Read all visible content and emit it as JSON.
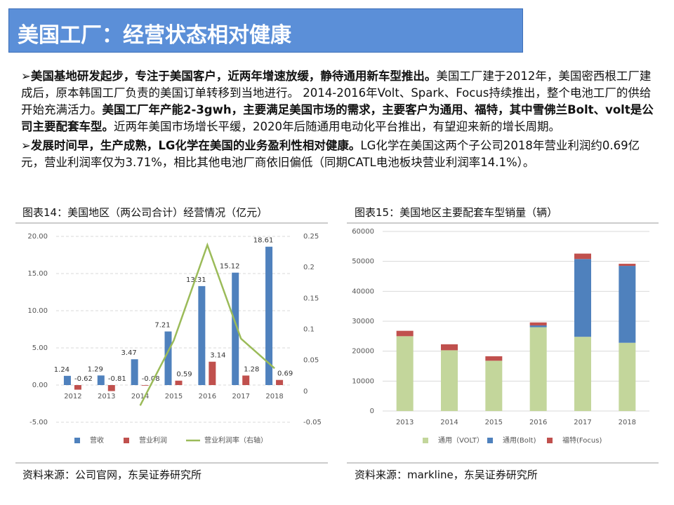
{
  "header": {
    "title": "美国工厂：经营状态相对健康"
  },
  "paragraphs": [
    {
      "segments": [
        {
          "text": "➢美国基地研发起步，专注于美国客户，近两年增速放缓，静待通用新车型推出。",
          "bold": true
        },
        {
          "text": "美国工厂建于2012年，美国密西根工厂建成后，原本韩国工厂负责的美国订单转移到当地进行。 2014-2016年Volt、Spark、Focus持续推出，整个电池工厂的供给开始充满活力。",
          "bold": false
        },
        {
          "text": "美国工厂年产能2-3gwh，主要满足美国市场的需求，主要客户为通用、福特，其中雪佛兰Bolt、volt是公司主要配套车型。",
          "bold": true
        },
        {
          "text": "近两年美国市场增长平缓，2020年后随通用电动化平台推出，有望迎来新的增长周期。",
          "bold": false
        }
      ]
    },
    {
      "segments": [
        {
          "text": "➢发展时间早，生产成熟，LG化学在美国的业务盈利性相对健康。",
          "bold": true
        },
        {
          "text": "LG化学在美国这两个子公司2018年营业利润约0.69亿元，营业利润率仅为3.71%，相比其他电池厂商依旧偏低（同期CATL电池板块营业利润率14.1%）。",
          "bold": false
        }
      ]
    }
  ],
  "charts": [
    {
      "type": "bar",
      "caption": "图表14：美国地区（两公司合计）经营情况（亿元）",
      "source": "资料来源：公司官网，东吴证券研究所",
      "categories": [
        "2012",
        "2013",
        "2014",
        "2015",
        "2016",
        "2017",
        "2018"
      ],
      "series": [
        {
          "name": "营收",
          "color": "#4f81bd",
          "values": [
            1.24,
            1.29,
            3.47,
            7.21,
            13.31,
            15.12,
            18.61
          ]
        },
        {
          "name": "营业利润",
          "color": "#c0504d",
          "values": [
            -0.62,
            -0.81,
            -0.08,
            0.59,
            3.14,
            1.28,
            0.69
          ]
        },
        {
          "name": "营业利润率（右轴）",
          "color": "#9bbb59",
          "type": "line",
          "axis": "y2",
          "values": [
            null,
            null,
            -0.023,
            0.082,
            0.236,
            0.085,
            0.037
          ]
        }
      ],
      "ylim": [
        -5,
        20
      ],
      "yticks": [
        {
          "value": -5,
          "label": "-5.00"
        },
        {
          "value": 0,
          "label": "0.00"
        },
        {
          "value": 5,
          "label": "5.00"
        },
        {
          "value": 10,
          "label": "10.00"
        },
        {
          "value": 15,
          "label": "15.00"
        },
        {
          "value": 20,
          "label": "20.00"
        }
      ],
      "y2lim": [
        -0.05,
        0.25
      ],
      "y2ticks": [
        -0.05,
        0,
        0.05,
        0.1,
        0.15,
        0.2,
        0.25
      ],
      "grid": true,
      "data_labels": true,
      "legend": "bottom"
    },
    {
      "type": "stacked-bar",
      "caption": "图表15：美国地区主要配套车型销量（辆）",
      "source": "资料来源：markline，东吴证券研究所",
      "categories": [
        "2013",
        "2014",
        "2015",
        "2016",
        "2017",
        "2018"
      ],
      "series": [
        {
          "name": "通用（VOLT）",
          "color": "#c3d69b",
          "values": [
            25000,
            20300,
            16800,
            28000,
            24800,
            22800
          ]
        },
        {
          "name": "通用(Bolt)",
          "color": "#4f81bd",
          "values": [
            0,
            0,
            0,
            600,
            26000,
            25700
          ]
        },
        {
          "name": "福特(Focus)",
          "color": "#c0504d",
          "values": [
            1800,
            2000,
            1500,
            1000,
            1800,
            700
          ]
        }
      ],
      "ylim": [
        0,
        60000
      ],
      "yticks": [
        0,
        10000,
        20000,
        30000,
        40000,
        50000,
        60000
      ],
      "grid": true,
      "legend": "bottom"
    }
  ]
}
